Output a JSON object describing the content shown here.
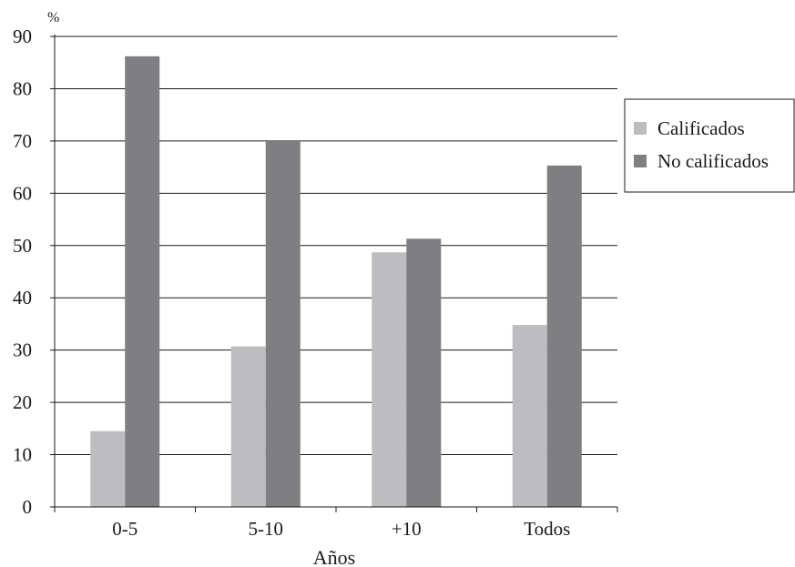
{
  "chart_data": {
    "type": "bar",
    "title": "",
    "ylabel": "%",
    "xlabel": "Años",
    "ylim": [
      0,
      90
    ],
    "yticks": [
      0,
      10,
      20,
      30,
      40,
      50,
      60,
      70,
      80,
      90
    ],
    "grid": true,
    "legend_position": "right",
    "categories": [
      "0-5",
      "5-10",
      "+10",
      "Todos"
    ],
    "series": [
      {
        "name": "Calificados",
        "color": "#bdbdc0",
        "values": [
          14.5,
          30.7,
          48.7,
          34.8
        ]
      },
      {
        "name": "No calificados",
        "color": "#7f7f82",
        "values": [
          86.2,
          70.0,
          51.3,
          65.3
        ]
      }
    ]
  }
}
